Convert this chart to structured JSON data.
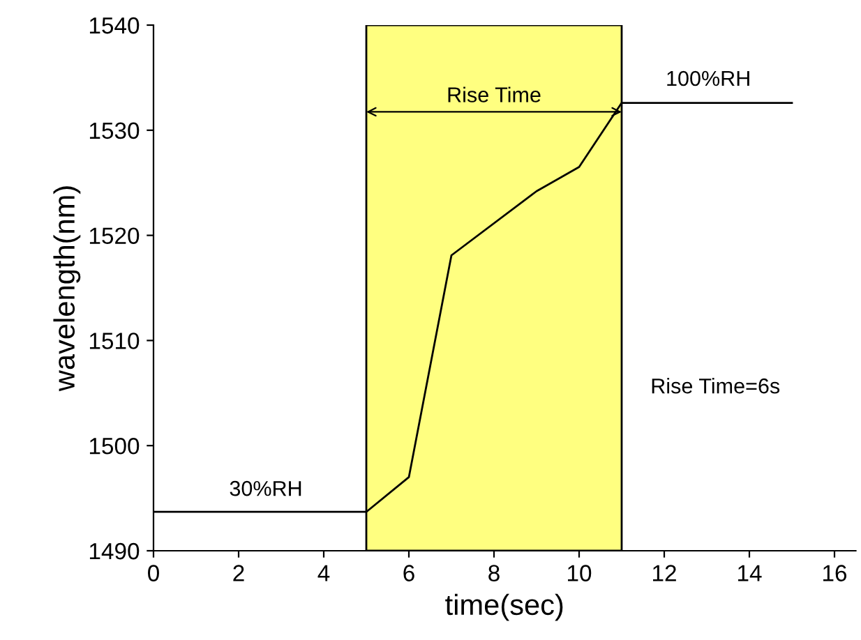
{
  "chart_data": {
    "type": "line",
    "xlabel": "time(sec)",
    "ylabel": "wavelength(nm)",
    "x": [
      0,
      5,
      6,
      7,
      9,
      10,
      11,
      15
    ],
    "series": [
      {
        "color": "#000000",
        "values": [
          1493.7,
          1493.7,
          1497.0,
          1518.1,
          1524.2,
          1526.5,
          1532.6,
          1532.6
        ]
      }
    ],
    "xlim": [
      0,
      16.5
    ],
    "xticks": [
      0,
      2,
      4,
      6,
      8,
      10,
      12,
      14,
      16
    ],
    "ylim": [
      1490,
      1540
    ],
    "yticks": [
      1490,
      1500,
      1510,
      1520,
      1530,
      1540
    ],
    "bands": [
      {
        "axis": "x",
        "from": 5,
        "to": 11,
        "color": "#ffff80",
        "label": "Rise Time"
      }
    ],
    "annotations": [
      "30%RH",
      "100%RH",
      "Rise Time=6s"
    ],
    "grid": false,
    "marker": "none",
    "line_style": "solid"
  }
}
